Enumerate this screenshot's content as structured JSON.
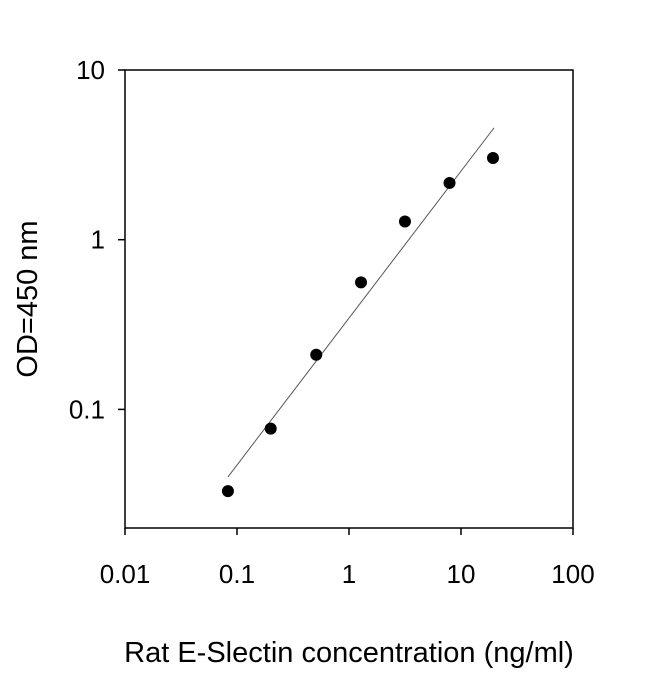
{
  "chart_data": {
    "type": "scatter",
    "title": "",
    "xlabel": "Rat E-Slectin concentration (ng/ml)",
    "ylabel": "OD=450 nm",
    "xscale": "log",
    "yscale": "log",
    "xlim": [
      0.01,
      100
    ],
    "ylim": [
      0.02,
      10
    ],
    "xticks": [
      0.01,
      0.1,
      1,
      10,
      100
    ],
    "xtick_labels": [
      "0.01",
      "0.1",
      "1",
      "10",
      "100"
    ],
    "yticks": [
      0.1,
      1,
      10
    ],
    "ytick_labels": [
      "0.1",
      "1",
      "10"
    ],
    "grid": false,
    "points": [
      {
        "x": 0.083,
        "y": 0.033
      },
      {
        "x": 0.2,
        "y": 0.077
      },
      {
        "x": 0.51,
        "y": 0.21
      },
      {
        "x": 1.28,
        "y": 0.56
      },
      {
        "x": 3.16,
        "y": 1.28
      },
      {
        "x": 7.9,
        "y": 2.16
      },
      {
        "x": 19.3,
        "y": 3.03
      }
    ],
    "fit_line": [
      {
        "x": 0.083,
        "y": 0.04
      },
      {
        "x": 19.7,
        "y": 4.56
      }
    ],
    "marker_color": "#000000",
    "line_color": "#555555"
  }
}
